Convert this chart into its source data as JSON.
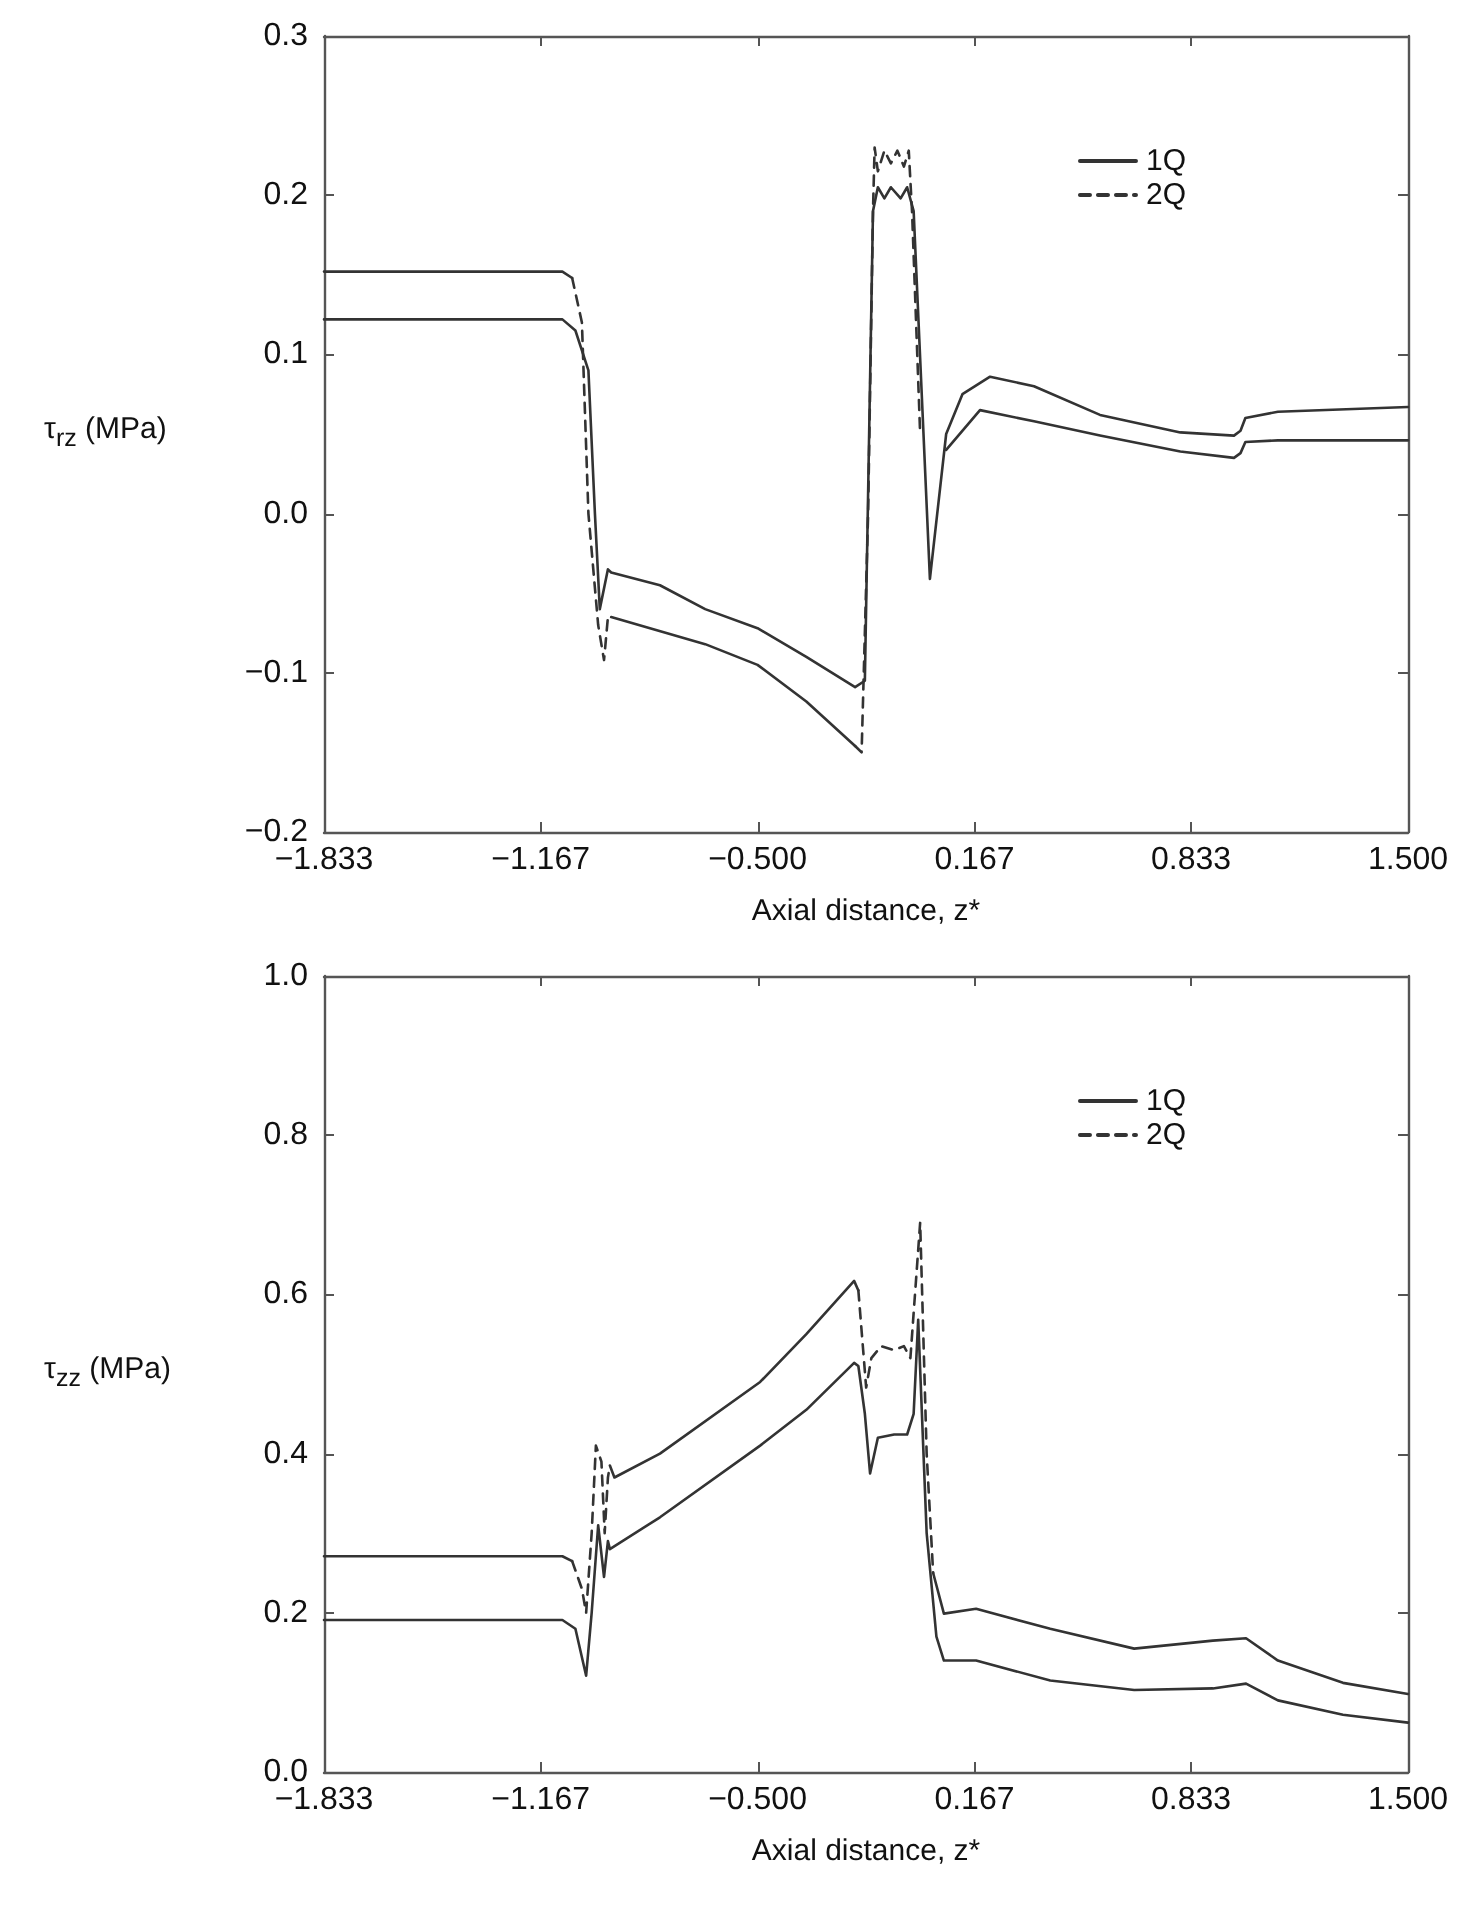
{
  "chart_data": [
    {
      "type": "line",
      "ylabel": "τ$_{rz}$ (MPa)",
      "xlabel": "Axial distance, z*",
      "xlim": [
        -1.833,
        1.5
      ],
      "xticks": [
        {
          "value": -1.833,
          "label": "−1.833"
        },
        {
          "value": -1.167,
          "label": "−1.167"
        },
        {
          "value": -0.5,
          "label": "−0.500"
        },
        {
          "value": 0.167,
          "label": "0.167"
        },
        {
          "value": 0.833,
          "label": "0.833"
        },
        {
          "value": 1.5,
          "label": "1.500"
        }
      ],
      "ylim": [
        -0.2,
        0.3
      ],
      "yticks": [
        {
          "value": -0.2,
          "label": "−0.2"
        },
        {
          "value": -0.1,
          "label": "−0.1"
        },
        {
          "value": 0,
          "label": "0.0"
        },
        {
          "value": 0.1,
          "label": "0.1"
        },
        {
          "value": 0.2,
          "label": "0.2"
        },
        {
          "value": 0.3,
          "label": "0.3"
        }
      ],
      "grid": false,
      "legend": "top right",
      "marker": "none",
      "series": [
        {
          "name": "1Q",
          "color": "#333333",
          "line_style": "solid",
          "x": [
            -1.833,
            -1.1,
            -1.06,
            -1.02,
            -1.0,
            -0.985,
            -0.96,
            -0.95,
            -0.8,
            -0.661,
            -0.5,
            -0.35,
            -0.2,
            -0.17,
            -0.145,
            -0.13,
            -0.11,
            -0.09,
            -0.06,
            -0.04,
            -0.02,
            0.03,
            0.08,
            0.13,
            0.215,
            0.35,
            0.553,
            0.8,
            0.965,
            0.985,
            1.0,
            1.1,
            1.5
          ],
          "values": [
            0.122,
            0.122,
            0.115,
            0.09,
            0.0,
            -0.06,
            -0.035,
            -0.037,
            -0.045,
            -0.06,
            -0.072,
            -0.09,
            -0.109,
            -0.105,
            0.19,
            0.205,
            0.198,
            0.205,
            0.198,
            0.205,
            0.19,
            -0.041,
            0.05,
            0.075,
            0.086,
            0.08,
            0.062,
            0.051,
            0.049,
            0.052,
            0.06,
            0.064,
            0.067
          ]
        },
        {
          "color": "#333333",
          "line_style": "solid",
          "x": [
            -1.833,
            -1.1,
            -1.07,
            -1.0,
            -0.95,
            -0.661,
            -0.5,
            -0.35,
            -0.2,
            0.0,
            0.08,
            0.184,
            0.35,
            0.553,
            0.8,
            0.965,
            0.985,
            1.0,
            1.1,
            1.5
          ],
          "values": [
            0.152,
            0.152,
            0.148,
            null,
            -0.065,
            -0.082,
            -0.095,
            -0.118,
            -0.146,
            null,
            0.04,
            0.065,
            0.058,
            0.049,
            0.039,
            0.035,
            0.038,
            0.045,
            0.046,
            0.046
          ]
        },
        {
          "name": "2Q",
          "color": "#333333",
          "line_style": "dashed",
          "x": [
            -1.07,
            -1.04,
            -1.02,
            -0.99,
            -0.972,
            -0.96,
            -0.95,
            -0.6,
            -0.2,
            -0.18,
            -0.16,
            -0.145,
            -0.14,
            -0.13,
            -0.11,
            -0.09,
            -0.07,
            -0.05,
            -0.035,
            -0.025,
            0.0
          ],
          "values": [
            0.148,
            0.12,
            0.0,
            -0.07,
            -0.092,
            -0.065,
            -0.065,
            null,
            -0.146,
            -0.15,
            0.0,
            0.19,
            0.23,
            0.215,
            0.228,
            0.22,
            0.228,
            0.218,
            0.228,
            0.19,
            0.05
          ]
        }
      ]
    },
    {
      "type": "line",
      "ylabel": "τ$_{zz}$ (MPa)",
      "xlabel": "Axial distance, z*",
      "xlim": [
        -1.833,
        1.5
      ],
      "xticks": [
        {
          "value": -1.833,
          "label": "−1.833"
        },
        {
          "value": -1.167,
          "label": "−1.167"
        },
        {
          "value": -0.5,
          "label": "−0.500"
        },
        {
          "value": 0.167,
          "label": "0.167"
        },
        {
          "value": 0.833,
          "label": "0.833"
        },
        {
          "value": 1.5,
          "label": "1.500"
        }
      ],
      "ylim": [
        0,
        1
      ],
      "yticks": [
        {
          "value": 0,
          "label": "0.0"
        },
        {
          "value": 0.2,
          "label": "0.2"
        },
        {
          "value": 0.4,
          "label": "0.4"
        },
        {
          "value": 0.6,
          "label": "0.6"
        },
        {
          "value": 0.8,
          "label": "0.8"
        },
        {
          "value": 1,
          "label": "1.0"
        }
      ],
      "grid": false,
      "legend": "top right",
      "marker": "none",
      "series": [
        {
          "name": "1Q",
          "color": "#333333",
          "line_style": "solid",
          "x": [
            -1.833,
            -1.1,
            -1.06,
            -1.027,
            -1.01,
            -0.99,
            -0.972,
            -0.96,
            -0.954,
            -0.8,
            -0.492,
            -0.35,
            -0.203,
            -0.19,
            -0.17,
            -0.154,
            -0.13,
            -0.08,
            -0.04,
            -0.02,
            -0.006,
            0.02,
            0.05,
            0.073,
            0.172,
            0.4,
            0.658,
            0.9,
            1.002,
            1.1,
            1.3,
            1.5
          ],
          "values": [
            0.191,
            0.191,
            0.18,
            0.121,
            0.2,
            0.31,
            0.245,
            0.29,
            0.28,
            0.32,
            0.41,
            0.455,
            0.514,
            0.51,
            0.45,
            0.375,
            0.42,
            0.424,
            0.424,
            0.45,
            0.568,
            0.3,
            0.17,
            0.14,
            0.14,
            0.115,
            0.103,
            0.105,
            0.111,
            0.09,
            0.072,
            0.062
          ]
        },
        {
          "color": "#333333",
          "line_style": "solid",
          "x": [
            -1.833,
            -1.1,
            -1.07,
            -1.0,
            -0.954,
            -0.94,
            -0.8,
            -0.492,
            -0.35,
            -0.203,
            -0.19,
            0.0,
            0.04,
            0.073,
            0.172,
            0.4,
            0.658,
            0.9,
            1.002,
            1.1,
            1.3,
            1.5
          ],
          "values": [
            0.271,
            0.271,
            0.265,
            null,
            0.385,
            0.37,
            0.4,
            0.49,
            0.55,
            0.617,
            0.605,
            null,
            0.25,
            0.199,
            0.205,
            0.18,
            0.155,
            0.165,
            0.168,
            0.14,
            0.112,
            0.098
          ]
        },
        {
          "name": "2Q",
          "color": "#333333",
          "line_style": "dashed",
          "x": [
            -1.07,
            -1.04,
            -1.027,
            -1.01,
            -0.997,
            -0.98,
            -0.97,
            -0.96,
            -0.954,
            -0.6,
            -0.19,
            -0.166,
            -0.15,
            -0.12,
            -0.08,
            -0.05,
            -0.03,
            0.0,
            0.02,
            0.04
          ],
          "values": [
            0.265,
            0.23,
            0.2,
            0.3,
            0.41,
            0.39,
            0.3,
            0.37,
            0.385,
            null,
            0.605,
            0.483,
            0.52,
            0.535,
            0.53,
            0.535,
            0.52,
            0.69,
            0.4,
            0.25
          ]
        }
      ]
    }
  ]
}
